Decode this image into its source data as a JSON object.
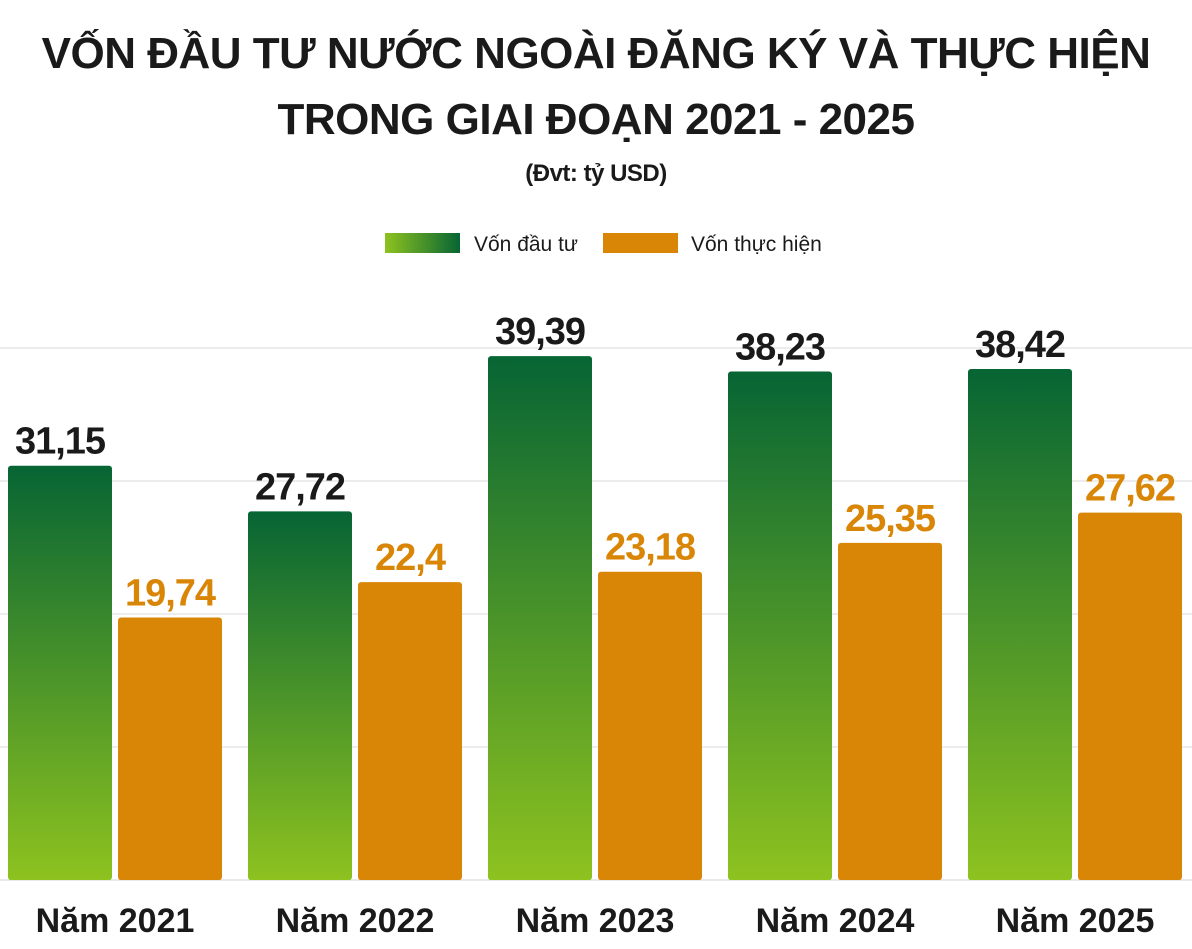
{
  "chart_data": {
    "type": "bar",
    "title": [
      "VỐN ĐẦU TƯ NƯỚC NGOÀI ĐĂNG KÝ VÀ THỰC HIỆN",
      "TRONG GIAI ĐOẠN 2021 - 2025"
    ],
    "subtitle": "(Đvt: tỷ USD)",
    "categories": [
      "Năm 2021",
      "Năm 2022",
      "Năm 2023",
      "Năm 2024",
      "Năm 2025"
    ],
    "series": [
      {
        "name": "Vốn đầu tư",
        "values": [
          31.15,
          27.72,
          39.39,
          38.23,
          38.42
        ],
        "labels": [
          "31,15",
          "27,72",
          "39,39",
          "38,23",
          "38,42"
        ],
        "color_top": "#076534",
        "color_bottom": "#8dc21f"
      },
      {
        "name": "Vốn thực hiện",
        "values": [
          19.74,
          22.4,
          23.18,
          25.35,
          27.62
        ],
        "labels": [
          "19,74",
          "22,4",
          "23,18",
          "25,35",
          "27,62"
        ],
        "color": "#d98607"
      }
    ],
    "ylim": [
      0,
      40
    ],
    "grid": true,
    "gridlines": [
      10,
      20,
      30,
      40
    ],
    "legend": "top-center"
  }
}
